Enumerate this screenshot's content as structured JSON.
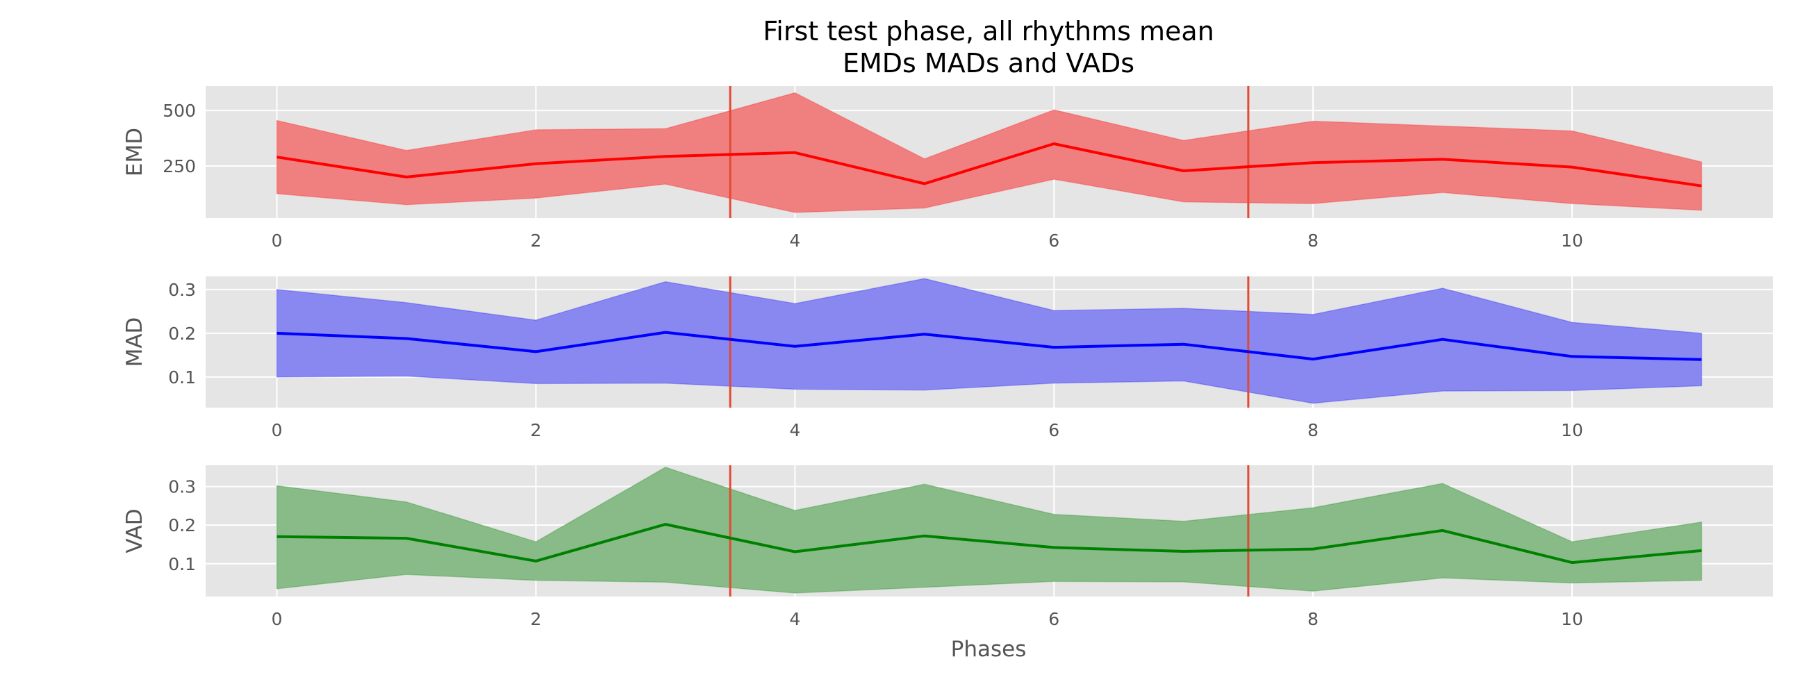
{
  "chart_data": {
    "type": "line",
    "title_lines": [
      "First test phase, all rhythms mean",
      "EMDs MADs and VADs"
    ],
    "xlabel": "Phases",
    "x": [
      0,
      1,
      2,
      3,
      4,
      5,
      6,
      7,
      8,
      9,
      10,
      11
    ],
    "xlim": [
      -0.55,
      11.55
    ],
    "xticks": [
      0,
      2,
      4,
      6,
      8,
      10
    ],
    "vlines": [
      3.5,
      7.5
    ],
    "vline_color": "#e24a33",
    "grid": true,
    "background": "#e5e5e5",
    "panels": [
      {
        "ylabel": "EMD",
        "color": "#ff0000",
        "fill_color": "#f08080",
        "ylim": [
          15,
          610
        ],
        "yticks": [
          250,
          500
        ],
        "mean": [
          290,
          200,
          260,
          293,
          310,
          170,
          350,
          228,
          265,
          280,
          245,
          160
        ],
        "upper": [
          455,
          320,
          413,
          418,
          580,
          282,
          503,
          365,
          452,
          430,
          408,
          268
        ],
        "lower": [
          125,
          75,
          105,
          168,
          40,
          60,
          190,
          88,
          80,
          130,
          80,
          50
        ]
      },
      {
        "ylabel": "MAD",
        "color": "#0000ff",
        "fill_color": "#8888f0",
        "ylim": [
          0.03,
          0.33
        ],
        "yticks": [
          0.1,
          0.2,
          0.3
        ],
        "mean": [
          0.2,
          0.188,
          0.158,
          0.202,
          0.17,
          0.198,
          0.168,
          0.175,
          0.141,
          0.186,
          0.147,
          0.14
        ],
        "upper": [
          0.3,
          0.27,
          0.23,
          0.318,
          0.268,
          0.325,
          0.252,
          0.257,
          0.243,
          0.303,
          0.225,
          0.2
        ],
        "lower": [
          0.1,
          0.102,
          0.085,
          0.086,
          0.072,
          0.07,
          0.086,
          0.091,
          0.04,
          0.068,
          0.069,
          0.08
        ]
      },
      {
        "ylabel": "VAD",
        "color": "#008000",
        "fill_color": "#88bb88",
        "ylim": [
          0.015,
          0.355
        ],
        "yticks": [
          0.1,
          0.2,
          0.3
        ],
        "mean": [
          0.17,
          0.166,
          0.107,
          0.202,
          0.131,
          0.172,
          0.142,
          0.132,
          0.138,
          0.186,
          0.103,
          0.134
        ],
        "upper": [
          0.302,
          0.26,
          0.157,
          0.35,
          0.238,
          0.306,
          0.228,
          0.21,
          0.245,
          0.308,
          0.157,
          0.208
        ],
        "lower": [
          0.035,
          0.072,
          0.057,
          0.052,
          0.024,
          0.039,
          0.054,
          0.053,
          0.029,
          0.063,
          0.05,
          0.057
        ]
      }
    ]
  }
}
